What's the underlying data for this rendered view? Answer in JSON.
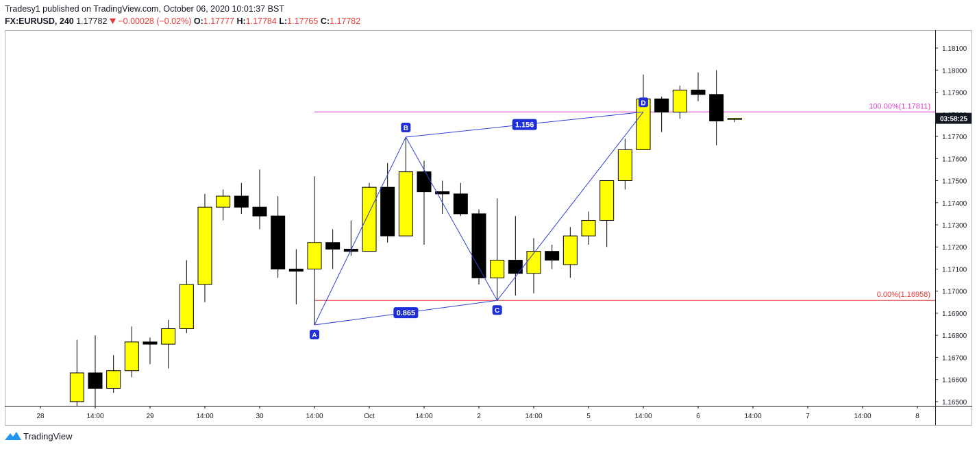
{
  "header": {
    "published": "Tradesy1 published on TradingView.com, October 06, 2020 10:01:37 BST",
    "symbol": "FX:EURUSD, 240",
    "last": 1.17782,
    "change": "−0.00028 (−0.02%)",
    "ohlc": [
      {
        "label": "O:",
        "value": 1.17777
      },
      {
        "label": "H:",
        "value": 1.17784
      },
      {
        "label": "L:",
        "value": 1.17765
      },
      {
        "label": "C:",
        "value": 1.17782
      }
    ]
  },
  "chart_data": {
    "type": "candlestick",
    "categories": [
      "28",
      null,
      null,
      "14:00",
      null,
      null,
      "29",
      null,
      null,
      "14:00",
      null,
      null,
      "30",
      null,
      null,
      "14:00",
      null,
      null,
      "Oct",
      null,
      null,
      "14:00",
      null,
      null,
      "2",
      null,
      null,
      "14:00",
      null,
      null,
      "5",
      null,
      null,
      "14:00",
      null,
      null,
      "6",
      null,
      null,
      "14:00",
      null,
      null,
      "7",
      null,
      null,
      "14:00",
      null,
      null,
      "8"
    ],
    "open": [
      null,
      null,
      1.165,
      1.1663,
      1.1656,
      1.1664,
      1.1677,
      1.1676,
      1.1683,
      1.1703,
      1.1738,
      1.1743,
      1.1738,
      1.1734,
      1.171,
      1.171,
      1.1722,
      1.1719,
      1.1718,
      1.1747,
      1.1725,
      1.1754,
      1.1745,
      1.1744,
      1.1735,
      1.1706,
      1.1714,
      1.1708,
      1.1718,
      1.1712,
      1.1725,
      1.1732,
      1.175,
      1.1764,
      1.1787,
      1.1781,
      1.1791,
      1.1789,
      1.17777,
      null,
      null,
      null,
      null,
      null,
      null,
      null,
      null,
      null,
      null
    ],
    "high": [
      null,
      null,
      1.1678,
      1.168,
      1.1671,
      1.1684,
      1.1679,
      1.1687,
      1.1714,
      1.1744,
      1.1746,
      1.1749,
      1.1755,
      1.1743,
      1.1719,
      1.1752,
      1.1728,
      1.1732,
      1.1749,
      1.1758,
      1.17697,
      1.1759,
      1.175,
      1.1749,
      1.1737,
      1.1742,
      1.1734,
      1.1724,
      1.1721,
      1.1729,
      1.1736,
      1.175,
      1.1769,
      1.1798,
      1.1788,
      1.1793,
      1.1799,
      1.18,
      1.17784,
      null,
      null,
      null,
      null,
      null,
      null,
      null,
      null,
      null,
      null
    ],
    "low": [
      null,
      null,
      1.1648,
      1.1648,
      1.1654,
      1.1661,
      1.1667,
      1.1665,
      1.1681,
      1.1695,
      1.1732,
      1.1735,
      1.1728,
      1.1706,
      1.1694,
      1.16847,
      1.171,
      1.1716,
      1.1718,
      1.1722,
      1.1725,
      1.1721,
      1.1735,
      1.1734,
      1.1703,
      1.16958,
      1.1698,
      1.1699,
      1.171,
      1.1706,
      1.1721,
      1.172,
      1.1746,
      1.1764,
      1.1772,
      1.1778,
      1.1786,
      1.1766,
      1.17765,
      null,
      null,
      null,
      null,
      null,
      null,
      null,
      null,
      null,
      null
    ],
    "close": [
      null,
      null,
      1.1663,
      1.1656,
      1.1664,
      1.1677,
      1.1676,
      1.1683,
      1.1703,
      1.1738,
      1.1743,
      1.1738,
      1.1734,
      1.171,
      1.1709,
      1.1722,
      1.1719,
      1.1718,
      1.1747,
      1.1725,
      1.1754,
      1.1745,
      1.1744,
      1.1735,
      1.1706,
      1.1714,
      1.1708,
      1.1718,
      1.1714,
      1.1725,
      1.1732,
      1.175,
      1.1764,
      1.1787,
      1.1781,
      1.1791,
      1.1789,
      1.1777,
      1.17782,
      null,
      null,
      null,
      null,
      null,
      null,
      null,
      null,
      null,
      null
    ],
    "up_color": "#ffff00",
    "down_color": "#000000",
    "ylim": [
      1.16481,
      1.18181
    ],
    "yticks": [
      {
        "value": 1.165,
        "label": "1.16500"
      },
      {
        "value": 1.166,
        "label": "1.16600"
      },
      {
        "value": 1.167,
        "label": "1.16700"
      },
      {
        "value": 1.168,
        "label": "1.16800"
      },
      {
        "value": 1.169,
        "label": "1.16900"
      },
      {
        "value": 1.17,
        "label": "1.17000"
      },
      {
        "value": 1.171,
        "label": "1.17100"
      },
      {
        "value": 1.172,
        "label": "1.17200"
      },
      {
        "value": 1.173,
        "label": "1.17300"
      },
      {
        "value": 1.174,
        "label": "1.17400"
      },
      {
        "value": 1.175,
        "label": "1.17500"
      },
      {
        "value": 1.176,
        "label": "1.17600"
      },
      {
        "value": 1.177,
        "label": "1.17700"
      },
      {
        "value": 1.178,
        "label": "1.17800"
      },
      {
        "value": 1.179,
        "label": "1.17900"
      },
      {
        "value": 1.18,
        "label": "1.18000"
      },
      {
        "value": 1.181,
        "label": "1.18100"
      }
    ],
    "countdown": "03:58:25",
    "pattern": {
      "color": "#2f3fd6",
      "points": [
        {
          "label": "A",
          "at": 15,
          "price": 1.16847
        },
        {
          "label": "B",
          "at": 20,
          "price": 1.17697
        },
        {
          "label": "C",
          "at": 25,
          "price": 1.16958
        },
        {
          "label": "D",
          "at": 33,
          "price": 1.17811
        }
      ],
      "ratios": [
        "0.865",
        "1.156"
      ]
    },
    "levels": [
      {
        "label": "100.00%(1.17811)",
        "value": 1.17811,
        "from": 15,
        "color": "#e040d0"
      },
      {
        "label": "0.00%(1.16958)",
        "value": 1.16958,
        "from": 15,
        "color": "#e53935"
      }
    ]
  },
  "footer": {
    "brand": "TradingView"
  }
}
